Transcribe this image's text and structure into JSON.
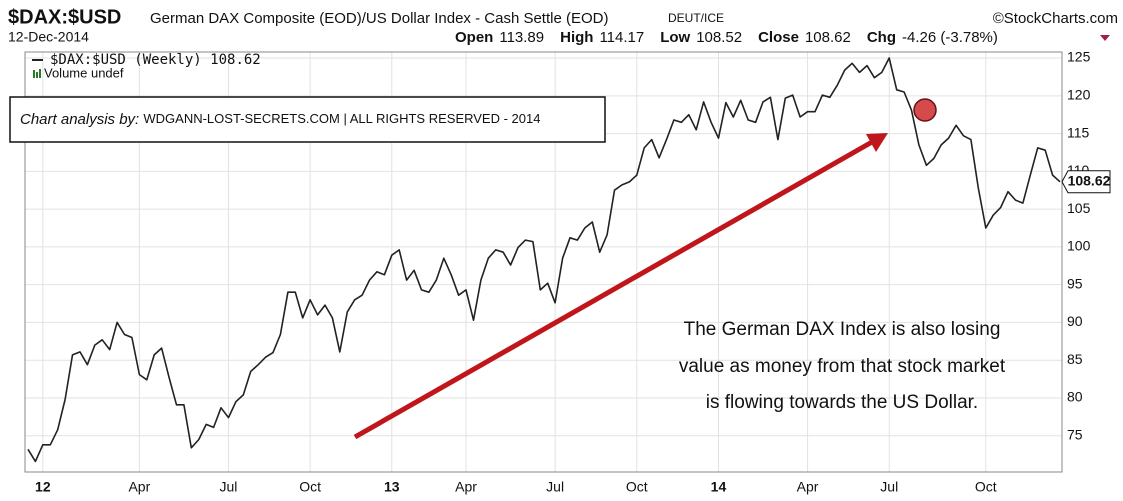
{
  "chart_data": {
    "type": "line",
    "title": "$DAX:$USD",
    "subtitle": "German DAX Composite (EOD)/US Dollar Index - Cash Settle (EOD)",
    "exchange": "DEUT/ICE",
    "source": "©StockCharts.com",
    "date": "12-Dec-2014",
    "quote": [
      {
        "label": "Open",
        "value": 113.89
      },
      {
        "label": "High",
        "value": 114.17
      },
      {
        "label": "Low",
        "value": 108.52
      },
      {
        "label": "Close",
        "value": 108.62
      },
      {
        "label": "Chg",
        "value": "-4.26 (-3.78%)"
      }
    ],
    "volume_note": "Volume undef",
    "credit": {
      "lead": "Chart analysis by:",
      "text": "WDGANN-LOST-SECRETS.COM | ALL RIGHTS RESERVED - 2014"
    },
    "annotation": [
      "The German DAX Index is also losing",
      "value as money from that stock market",
      "is flowing towards the US Dollar."
    ],
    "categories": [
      null,
      null,
      "12",
      null,
      null,
      null,
      null,
      null,
      null,
      null,
      null,
      null,
      null,
      null,
      null,
      "Apr",
      null,
      null,
      null,
      null,
      null,
      null,
      null,
      null,
      null,
      null,
      null,
      "Jul",
      null,
      null,
      null,
      null,
      null,
      null,
      null,
      null,
      null,
      null,
      "Oct",
      null,
      null,
      null,
      null,
      null,
      null,
      null,
      null,
      null,
      null,
      "13",
      null,
      null,
      null,
      null,
      null,
      null,
      null,
      null,
      null,
      "Apr",
      null,
      null,
      null,
      null,
      null,
      null,
      null,
      null,
      null,
      null,
      null,
      "Jul",
      null,
      null,
      null,
      null,
      null,
      null,
      null,
      null,
      null,
      null,
      "Oct",
      null,
      null,
      null,
      null,
      null,
      null,
      null,
      null,
      null,
      null,
      "14",
      null,
      null,
      null,
      null,
      null,
      null,
      null,
      null,
      null,
      null,
      null,
      "Apr",
      null,
      null,
      null,
      null,
      null,
      null,
      null,
      null,
      null,
      null,
      "Jul",
      null,
      null,
      null,
      null,
      null,
      null,
      null,
      null,
      null,
      null,
      null,
      null,
      "Oct",
      null,
      null,
      null,
      null,
      null,
      null,
      null,
      null,
      null,
      null
    ],
    "series": [
      {
        "name": "$DAX:$USD (Weekly)",
        "color": "#222222",
        "values": [
          73.2,
          71.6,
          73.8,
          73.8,
          75.8,
          79.8,
          85.7,
          86.1,
          84.4,
          87,
          87.7,
          86.4,
          90,
          88.4,
          88,
          83.1,
          82.4,
          85.7,
          86.6,
          82.7,
          79.1,
          79.1,
          73.4,
          74.5,
          76.5,
          76.1,
          78.7,
          77.4,
          79.5,
          80.4,
          83.5,
          84.4,
          85.4,
          86,
          88.4,
          94,
          94,
          90.6,
          93,
          91,
          92.3,
          90.6,
          86.1,
          91.4,
          93,
          93.6,
          95.6,
          96.7,
          96.3,
          98.9,
          99.6,
          95.6,
          96.9,
          94.3,
          94,
          95.6,
          98.5,
          96.3,
          93.6,
          94.3,
          90.3,
          95.6,
          98.5,
          99.6,
          99.3,
          97.6,
          99.9,
          100.9,
          100.7,
          94.3,
          95.2,
          92.6,
          98.5,
          101.2,
          100.9,
          102.5,
          103.3,
          99.3,
          101.6,
          107.5,
          108.2,
          108.6,
          109.5,
          113.1,
          114.2,
          111.8,
          114.2,
          116.8,
          116.5,
          117.5,
          115.5,
          119.2,
          116.5,
          114.4,
          119.1,
          117.2,
          119.4,
          116.8,
          116.5,
          119.2,
          119.8,
          114.2,
          119.7,
          120.1,
          117.2,
          117.9,
          117.9,
          120.1,
          119.8,
          121.4,
          123.4,
          124.3,
          123.1,
          124,
          122.4,
          123.1,
          125,
          120.8,
          120.5,
          118.1,
          113.5,
          110.8,
          111.7,
          113.5,
          114.4,
          116.1,
          114.7,
          114.2,
          107.8,
          102.5,
          104.2,
          105.2,
          107.3,
          106.2,
          105.8,
          109.5,
          113.1,
          112.8,
          109.5,
          108.62
        ]
      }
    ],
    "ylim": [
      70.2,
      125.8
    ],
    "yticks": [
      75,
      80,
      85,
      90,
      95,
      100,
      105,
      110,
      115,
      120,
      125
    ],
    "grid": true
  }
}
